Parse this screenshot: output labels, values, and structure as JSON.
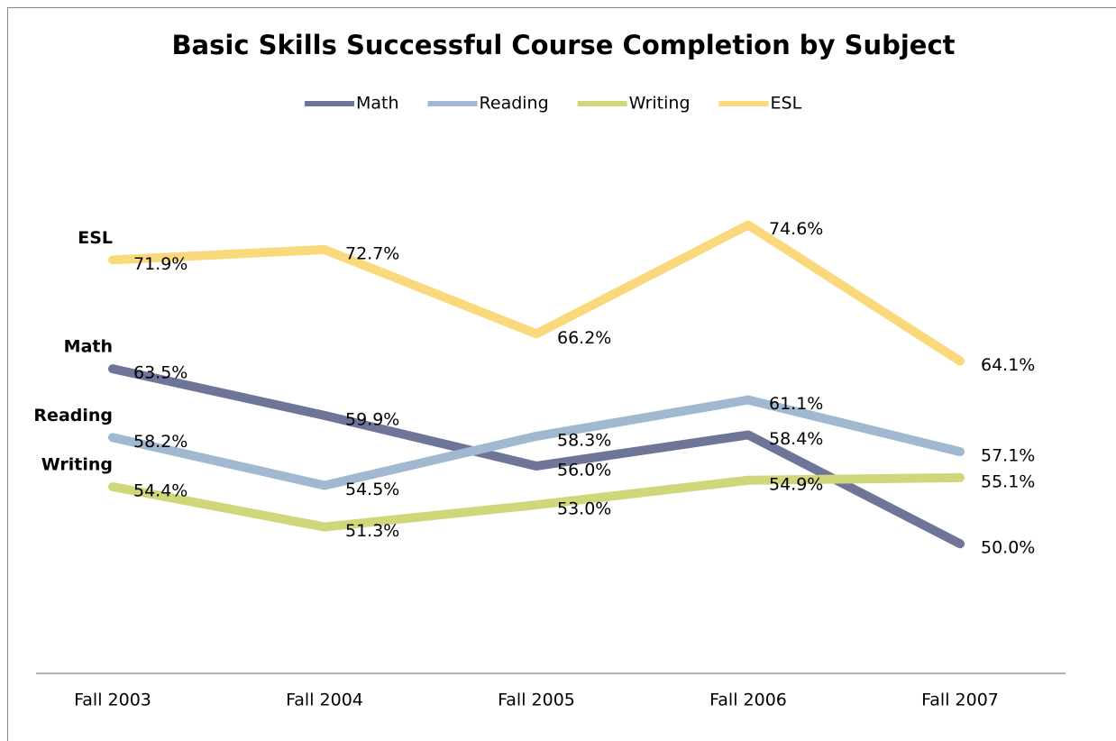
{
  "chart_data": {
    "type": "line",
    "title": "Basic Skills Successful Course Completion by Subject",
    "categories": [
      "Fall 2003",
      "Fall 2004",
      "Fall 2005",
      "Fall 2006",
      "Fall 2007"
    ],
    "series": [
      {
        "name": "Math",
        "color": "#6f7599",
        "values": [
          63.5,
          59.9,
          56.0,
          58.4,
          50.0
        ],
        "value_labels": [
          "63.5%",
          "59.9%",
          "56.0%",
          "58.4%",
          "50.0%"
        ]
      },
      {
        "name": "Reading",
        "color": "#a1b9d0",
        "values": [
          58.2,
          54.5,
          58.3,
          61.1,
          57.1
        ],
        "value_labels": [
          "58.2%",
          "54.5%",
          "58.3%",
          "61.1%",
          "57.1%"
        ]
      },
      {
        "name": "Writing",
        "color": "#cfd77a",
        "values": [
          54.4,
          51.3,
          53.0,
          54.9,
          55.1
        ],
        "value_labels": [
          "54.4%",
          "51.3%",
          "53.0%",
          "54.9%",
          "55.1%"
        ]
      },
      {
        "name": "ESL",
        "color": "#fad97c",
        "values": [
          71.9,
          72.7,
          66.2,
          74.6,
          64.1
        ],
        "value_labels": [
          "71.9%",
          "72.7%",
          "66.2%",
          "74.6%",
          "64.1%"
        ]
      }
    ],
    "ylim": [
      40,
      85
    ],
    "legend": "top"
  }
}
